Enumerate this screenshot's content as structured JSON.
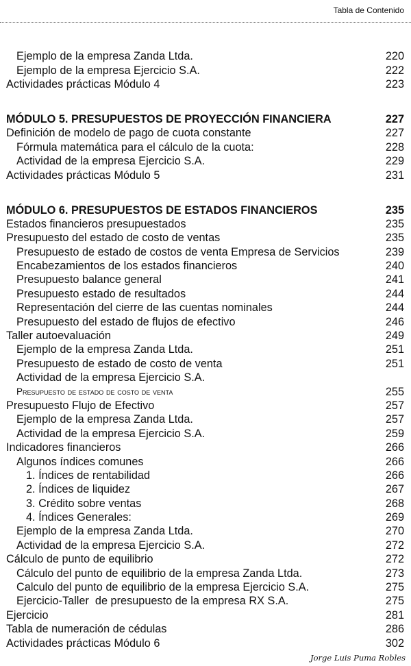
{
  "header": {
    "title": "Tabla de Contenido"
  },
  "entries": [
    {
      "text": "Ejemplo de la empresa Zanda Ltda.",
      "page": "220",
      "level": 1
    },
    {
      "text": "Ejemplo de la empresa Ejercicio S.A.",
      "page": "222",
      "level": 1
    },
    {
      "text": "Actividades prácticas Módulo 4",
      "page": "223",
      "level": 0
    },
    {
      "text": "MÓDULO 5. PRESUPUESTOS DE PROYECCIÓN FINANCIERA",
      "page": "227",
      "level": 0,
      "heading": true
    },
    {
      "text": "Definición de modelo de pago de cuota constante",
      "page": "227",
      "level": 0
    },
    {
      "text": "Fórmula matemática para el cálculo de la cuota:",
      "page": "228",
      "level": 1
    },
    {
      "text": "Actividad de la empresa Ejercicio S.A.",
      "page": "229",
      "level": 1
    },
    {
      "text": "Actividades prácticas Módulo 5",
      "page": "231",
      "level": 0
    },
    {
      "text": "MÓDULO 6. PRESUPUESTOS DE ESTADOS FINANCIEROS",
      "page": "235",
      "level": 0,
      "heading": true
    },
    {
      "text": "Estados financieros presupuestados",
      "page": "235",
      "level": 0
    },
    {
      "text": "Presupuesto del estado de costo de ventas",
      "page": "235",
      "level": 0
    },
    {
      "text": "Presupuesto de estado de costos de venta Empresa de Servicios",
      "page": "239",
      "level": 1
    },
    {
      "text": "Encabezamientos de los estados financieros",
      "page": "240",
      "level": 1
    },
    {
      "text": "Presupuesto balance general",
      "page": "241",
      "level": 1
    },
    {
      "text": "Presupuesto estado de resultados",
      "page": "244",
      "level": 1
    },
    {
      "text": "Representación del cierre de las cuentas nominales",
      "page": "244",
      "level": 1
    },
    {
      "text": "Presupuesto del estado de flujos de efectivo",
      "page": "246",
      "level": 1
    },
    {
      "text": "Taller autoevaluación",
      "page": "249",
      "level": 0
    },
    {
      "text": "Ejemplo de la empresa Zanda Ltda.",
      "page": "251",
      "level": 1
    },
    {
      "text": "Presupuesto de estado de costo de venta",
      "page": "251",
      "level": 1
    },
    {
      "text": "Actividad de la empresa Ejercicio S.A.",
      "page": "",
      "level": 1
    },
    {
      "text": "Presupuesto de estado de costo de venta",
      "page": "255",
      "level": 1,
      "smallcaps": true
    },
    {
      "text": "Presupuesto Flujo de Efectivo",
      "page": "257",
      "level": 0
    },
    {
      "text": "Ejemplo de la empresa Zanda Ltda.",
      "page": "257",
      "level": 1
    },
    {
      "text": "Actividad de la empresa Ejercicio S.A.",
      "page": "259",
      "level": 1
    },
    {
      "text": "Indicadores financieros",
      "page": "266",
      "level": 0
    },
    {
      "text": "Algunos índices comunes",
      "page": "266",
      "level": 1
    },
    {
      "text": "1. Índices de rentabilidad",
      "page": "266",
      "level": 2
    },
    {
      "text": "2. Índices de liquidez",
      "page": "267",
      "level": 2
    },
    {
      "text": "3. Crédito sobre ventas",
      "page": "268",
      "level": 2
    },
    {
      "text": "4. Índices Generales:",
      "page": "269",
      "level": 2
    },
    {
      "text": "Ejemplo de la empresa Zanda Ltda.",
      "page": "270",
      "level": 1
    },
    {
      "text": "Actividad de la empresa Ejercicio S.A.",
      "page": "272",
      "level": 1
    },
    {
      "text": "Cálculo de punto de equilibrio",
      "page": "272",
      "level": 0
    },
    {
      "text": "Cálculo del punto de equilibrio de la empresa Zanda Ltda.",
      "page": "273",
      "level": 1
    },
    {
      "text": "Calculo del punto de equilibrio de la empresa Ejercicio S.A.",
      "page": "275",
      "level": 1
    },
    {
      "text": "Ejercicio-Taller  de presupuesto de la empresa RX S.A.",
      "page": "275",
      "level": 1
    },
    {
      "text": "Ejercicio",
      "page": "281",
      "level": 0
    },
    {
      "text": "Tabla de numeración de cédulas",
      "page": "286",
      "level": 0
    },
    {
      "text": "Actividades prácticas Módulo 6",
      "page": "302",
      "level": 0
    }
  ],
  "footer": {
    "author": "Jorge Luis Puma Robles"
  }
}
